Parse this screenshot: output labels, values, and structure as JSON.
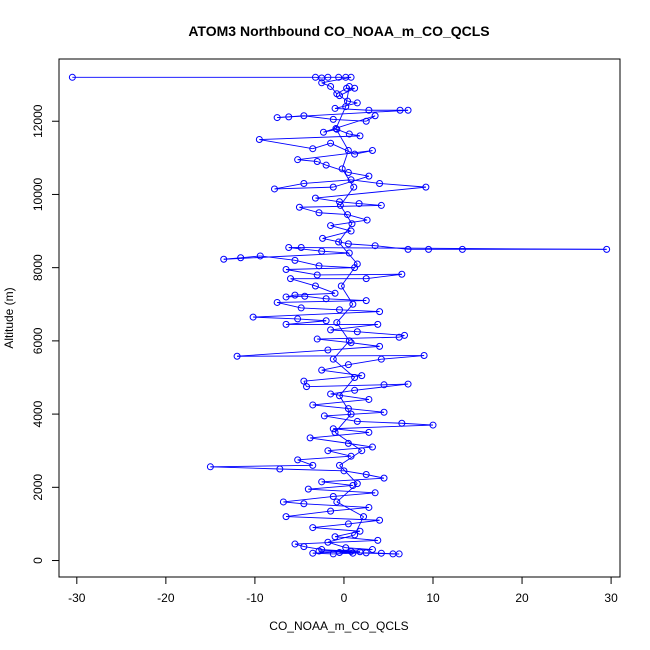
{
  "chart_data": {
    "type": "scatter",
    "title": "ATOM3 Northbound CO_NOAA_m_CO_QCLS",
    "xlabel": "CO_NOAA_m_CO_QCLS",
    "ylabel": "Altitude (m)",
    "xlim": [
      -32,
      31
    ],
    "ylim": [
      -450,
      13700
    ],
    "xticks": [
      -30,
      -20,
      -10,
      0,
      10,
      20,
      30
    ],
    "yticks": [
      0,
      2000,
      4000,
      6000,
      8000,
      10000,
      12000
    ],
    "xtick_labels": [
      "-30",
      "-20",
      "-10",
      "0",
      "10",
      "20",
      "30"
    ],
    "ytick_labels": [
      "0",
      "2000",
      "4000",
      "6000",
      "8000",
      "10000",
      "12000"
    ],
    "grid": false,
    "series": [
      {
        "color": "#0000ff",
        "marker": "open-circle",
        "connected": true,
        "points": [
          [
            -30.5,
            13200
          ],
          [
            -3.2,
            13200
          ],
          [
            -2.5,
            13180
          ],
          [
            -1.8,
            13200
          ],
          [
            -0.6,
            13200
          ],
          [
            0.2,
            13200
          ],
          [
            0.8,
            13200
          ],
          [
            -2.5,
            13050
          ],
          [
            -1.5,
            12950
          ],
          [
            -0.8,
            12750
          ],
          [
            0.3,
            12900
          ],
          [
            1.2,
            12900
          ],
          [
            -0.5,
            12700
          ],
          [
            0.4,
            12550
          ],
          [
            1.5,
            12500
          ],
          [
            -1.0,
            12350
          ],
          [
            2.8,
            12300
          ],
          [
            6.3,
            12300
          ],
          [
            7.2,
            12300
          ],
          [
            -7.5,
            12100
          ],
          [
            -6.2,
            12120
          ],
          [
            -4.5,
            12150
          ],
          [
            -1.2,
            12050
          ],
          [
            2.5,
            12000
          ],
          [
            3.5,
            12150
          ],
          [
            -2.3,
            11700
          ],
          [
            -0.8,
            11780
          ],
          [
            0.6,
            11650
          ],
          [
            1.8,
            11600
          ],
          [
            -9.5,
            11500
          ],
          [
            -3.5,
            11250
          ],
          [
            -1.5,
            11400
          ],
          [
            1.2,
            11100
          ],
          [
            3.2,
            11200
          ],
          [
            -5.2,
            10950
          ],
          [
            -3.0,
            10900
          ],
          [
            -2.0,
            10800
          ],
          [
            0.5,
            10600
          ],
          [
            2.8,
            10500
          ],
          [
            -1.2,
            10200
          ],
          [
            -7.8,
            10150
          ],
          [
            -4.5,
            10300
          ],
          [
            0.8,
            10400
          ],
          [
            4.0,
            10300
          ],
          [
            9.2,
            10200
          ],
          [
            -3.2,
            9900
          ],
          [
            -0.5,
            9800
          ],
          [
            1.7,
            9750
          ],
          [
            4.2,
            9700
          ],
          [
            -5.0,
            9650
          ],
          [
            -2.8,
            9500
          ],
          [
            0.4,
            9450
          ],
          [
            2.6,
            9300
          ],
          [
            -1.5,
            9150
          ],
          [
            0.8,
            9000
          ],
          [
            -2.4,
            8800
          ],
          [
            0.5,
            8650
          ],
          [
            3.5,
            8600
          ],
          [
            7.2,
            8500
          ],
          [
            9.5,
            8500
          ],
          [
            13.3,
            8500
          ],
          [
            29.5,
            8500
          ],
          [
            -4.8,
            8550
          ],
          [
            -6.2,
            8550
          ],
          [
            -2.5,
            8450
          ],
          [
            0.6,
            8400
          ],
          [
            -13.5,
            8230
          ],
          [
            -11.6,
            8270
          ],
          [
            -9.4,
            8320
          ],
          [
            -5.5,
            8200
          ],
          [
            -2.8,
            8050
          ],
          [
            1.2,
            8000
          ],
          [
            -6.5,
            7950
          ],
          [
            -3.0,
            7800
          ],
          [
            6.5,
            7820
          ],
          [
            2.5,
            7700
          ],
          [
            -6.0,
            7700
          ],
          [
            -3.2,
            7500
          ],
          [
            -1.0,
            7300
          ],
          [
            -5.5,
            7250
          ],
          [
            -6.5,
            7200
          ],
          [
            -4.4,
            7220
          ],
          [
            -2.0,
            7150
          ],
          [
            2.5,
            7100
          ],
          [
            -7.5,
            7050
          ],
          [
            -4.8,
            6900
          ],
          [
            -0.5,
            6850
          ],
          [
            4.0,
            6800
          ],
          [
            -10.2,
            6650
          ],
          [
            -5.2,
            6600
          ],
          [
            -2.0,
            6550
          ],
          [
            -6.5,
            6450
          ],
          [
            3.8,
            6450
          ],
          [
            -1.5,
            6300
          ],
          [
            1.5,
            6250
          ],
          [
            6.8,
            6150
          ],
          [
            6.2,
            6100
          ],
          [
            -3.0,
            6050
          ],
          [
            0.8,
            5950
          ],
          [
            4.0,
            5850
          ],
          [
            -1.8,
            5750
          ],
          [
            -12.0,
            5580
          ],
          [
            9.0,
            5600
          ],
          [
            4.2,
            5500
          ],
          [
            0.5,
            5350
          ],
          [
            -2.5,
            5200
          ],
          [
            2.0,
            5050
          ],
          [
            -4.5,
            4900
          ],
          [
            -4.2,
            4750
          ],
          [
            4.5,
            4800
          ],
          [
            7.2,
            4820
          ],
          [
            1.2,
            4650
          ],
          [
            -1.5,
            4550
          ],
          [
            2.8,
            4400
          ],
          [
            -3.5,
            4250
          ],
          [
            0.5,
            4150
          ],
          [
            4.5,
            4050
          ],
          [
            -2.2,
            3950
          ],
          [
            1.5,
            3800
          ],
          [
            6.5,
            3750
          ],
          [
            10.0,
            3700
          ],
          [
            -1.2,
            3600
          ],
          [
            2.8,
            3500
          ],
          [
            -3.8,
            3350
          ],
          [
            0.5,
            3200
          ],
          [
            3.2,
            3100
          ],
          [
            -1.8,
            3000
          ],
          [
            0.8,
            2850
          ],
          [
            -5.2,
            2750
          ],
          [
            -3.5,
            2600
          ],
          [
            -15.0,
            2560
          ],
          [
            -7.2,
            2500
          ],
          [
            0.0,
            2450
          ],
          [
            2.5,
            2350
          ],
          [
            4.5,
            2250
          ],
          [
            -2.5,
            2150
          ],
          [
            1.0,
            2050
          ],
          [
            -4.0,
            1950
          ],
          [
            3.5,
            1850
          ],
          [
            -1.2,
            1750
          ],
          [
            -6.8,
            1600
          ],
          [
            -4.5,
            1550
          ],
          [
            2.8,
            1450
          ],
          [
            -1.5,
            1350
          ],
          [
            -6.5,
            1200
          ],
          [
            4.0,
            1100
          ],
          [
            0.5,
            1000
          ],
          [
            -3.5,
            900
          ],
          [
            1.8,
            800
          ],
          [
            -1.0,
            650
          ],
          [
            3.8,
            550
          ],
          [
            -5.5,
            450
          ],
          [
            -4.5,
            380
          ],
          [
            -2.5,
            300
          ],
          [
            0.8,
            250
          ],
          [
            -3.5,
            200
          ],
          [
            -1.2,
            180
          ],
          [
            1.0,
            200
          ],
          [
            2.5,
            210
          ],
          [
            4.2,
            200
          ],
          [
            5.5,
            180
          ],
          [
            6.2,
            180
          ],
          [
            -0.5,
            220
          ],
          [
            1.8,
            240
          ],
          [
            -2.8,
            260
          ],
          [
            3.2,
            300
          ],
          [
            0.2,
            350
          ],
          [
            -1.8,
            500
          ],
          [
            1.2,
            700
          ],
          [
            2.2,
            1200
          ],
          [
            -0.8,
            1600
          ],
          [
            1.5,
            2100
          ],
          [
            -0.5,
            2600
          ],
          [
            2.0,
            3000
          ],
          [
            -1.0,
            3500
          ],
          [
            0.8,
            4000
          ],
          [
            -0.5,
            4500
          ],
          [
            1.2,
            5000
          ],
          [
            -1.2,
            5500
          ],
          [
            0.6,
            6000
          ],
          [
            -0.8,
            6500
          ],
          [
            1.0,
            7000
          ],
          [
            -0.3,
            7500
          ],
          [
            1.5,
            8100
          ],
          [
            -0.6,
            8700
          ],
          [
            0.9,
            9200
          ],
          [
            -0.4,
            9700
          ],
          [
            1.1,
            10200
          ],
          [
            -0.2,
            10700
          ],
          [
            0.5,
            11200
          ],
          [
            -0.9,
            11800
          ],
          [
            0.2,
            12400
          ],
          [
            0.6,
            12950
          ]
        ]
      }
    ]
  }
}
